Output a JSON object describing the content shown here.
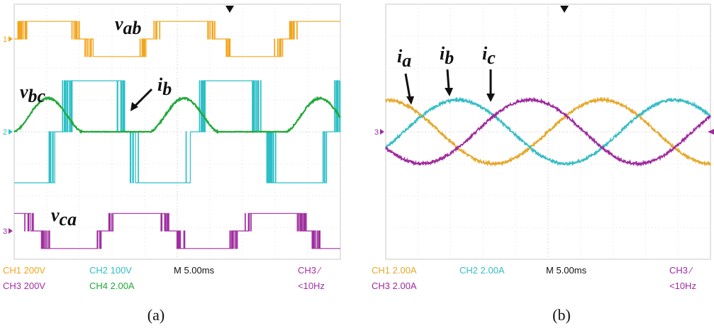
{
  "chart_data": [
    {
      "type": "line",
      "panel": "(a)",
      "time_per_div_ms": 5.0,
      "divisions": {
        "x": 10,
        "y": 8
      },
      "fundamental_hz": 50,
      "visible_periods": 2.4,
      "trigger_marker": "top",
      "series": [
        {
          "name": "v_ab",
          "channel": "CH1",
          "color": "#f2a51c",
          "scale": "200V",
          "form": "pwm-line-voltage",
          "phase_deg": 0,
          "amplitude_div": 0.55
        },
        {
          "name": "v_bc",
          "channel": "CH2",
          "color": "#2cbfc6",
          "scale": "100V",
          "form": "pwm-line-voltage",
          "phase_deg": -120,
          "amplitude_div": 1.6
        },
        {
          "name": "i_b",
          "channel": "CH4",
          "color": "#22a83a",
          "scale": "2.00A",
          "form": "half-sine-pulse",
          "phase_deg": 0,
          "amplitude_div": 1.05
        },
        {
          "name": "v_ca",
          "channel": "CH3",
          "color": "#a02fa0",
          "scale": "200V",
          "form": "pwm-line-voltage",
          "phase_deg": 120,
          "amplitude_div": 0.55
        }
      ],
      "labels": [
        {
          "base": "v",
          "sub": "ab"
        },
        {
          "base": "v",
          "sub": "bc"
        },
        {
          "base": "i",
          "sub": "b"
        },
        {
          "base": "v",
          "sub": "ca"
        }
      ],
      "status": {
        "ch1": "CH1  200V",
        "ch2": "CH2  100V",
        "ch3": "CH3  200V",
        "ch4": "CH4  2.00A",
        "timebase": "M 5.00ms",
        "trigger": "CH3 ⁄",
        "trigger_freq": "<10Hz"
      },
      "marker_labels": {
        "ch1": "1",
        "ch2": "2",
        "ch3": "3"
      }
    },
    {
      "type": "line",
      "panel": "(b)",
      "time_per_div_ms": 5.0,
      "divisions": {
        "x": 10,
        "y": 8
      },
      "fundamental_hz": 30,
      "trigger_marker": "top",
      "series": [
        {
          "name": "i_a",
          "channel": "CH1",
          "color": "#e6a82a",
          "scale": "2.00A",
          "form": "sine",
          "phase_deg": 90,
          "amplitude_div": 1.0
        },
        {
          "name": "i_b",
          "channel": "CH2",
          "color": "#35bcc4",
          "scale": "2.00A",
          "form": "sine",
          "phase_deg": -30,
          "amplitude_div": 1.0
        },
        {
          "name": "i_c",
          "channel": "CH3",
          "color": "#9e2a9e",
          "scale": "2.00A",
          "form": "sine",
          "phase_deg": 210,
          "amplitude_div": 1.0
        }
      ],
      "labels": [
        {
          "base": "i",
          "sub": "a"
        },
        {
          "base": "i",
          "sub": "b"
        },
        {
          "base": "i",
          "sub": "c"
        }
      ],
      "status": {
        "ch1": "CH1  2.00A",
        "ch2": "CH2  2.00A",
        "ch3": "CH3  2.00A",
        "timebase": "M 5.00ms",
        "trigger": "CH3 ⁄",
        "trigger_freq": "<10Hz"
      },
      "marker_labels": {
        "ch3": "3"
      }
    }
  ],
  "captions": {
    "a": "(a)",
    "b": "(b)"
  }
}
